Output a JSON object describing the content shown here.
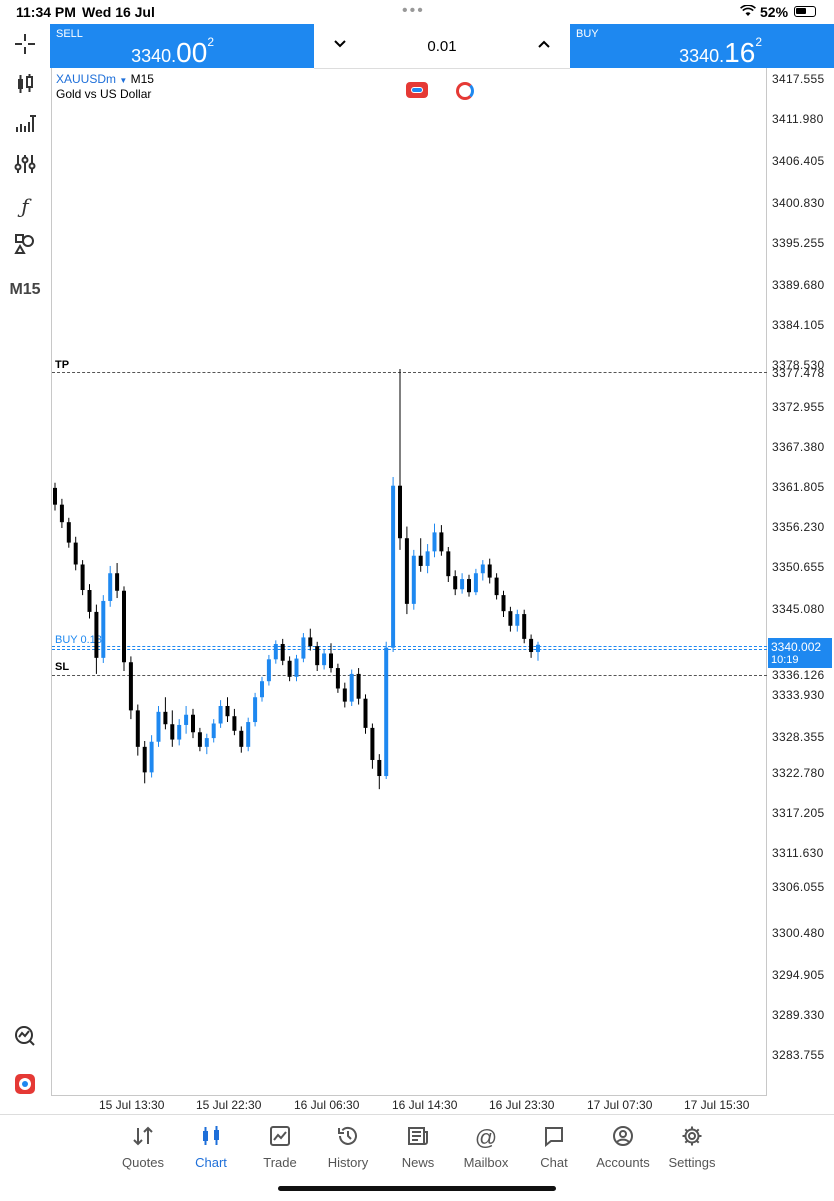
{
  "status": {
    "time": "11:34 PM",
    "date": "Wed 16 Jul",
    "battery": "52%"
  },
  "trade": {
    "sell_label": "SELL",
    "sell_main": "3340.",
    "sell_big": "00",
    "sell_sup": "2",
    "buy_label": "BUY",
    "buy_main": "3340.",
    "buy_big": "16",
    "buy_sup": "2",
    "lot": "0.01",
    "down_icon": "chevron-down-icon",
    "up_icon": "chevron-up-icon"
  },
  "chart": {
    "symbol": "XAUUSDm",
    "timeframe": "M15",
    "description": "Gold vs US Dollar",
    "current_price": "3340.002",
    "countdown": "10:19",
    "tp_label": "TP",
    "sl_label": "SL",
    "buy_label": "BUY 0.13",
    "y_labels": [
      "3417.555",
      "3411.980",
      "3406.405",
      "3400.830",
      "3395.255",
      "3389.680",
      "3384.105",
      "3378.530",
      "3377.478",
      "3372.955",
      "3367.380",
      "3361.805",
      "3356.230",
      "3350.655",
      "3345.080",
      "3336.126",
      "3333.930",
      "3328.355",
      "3322.780",
      "3317.205",
      "3311.630",
      "3306.055",
      "3300.480",
      "3294.905",
      "3289.330",
      "3283.755"
    ],
    "x_labels": [
      "15 Jul 13:30",
      "15 Jul 22:30",
      "16 Jul 06:30",
      "16 Jul 14:30",
      "16 Jul 23:30",
      "17 Jul 07:30",
      "17 Jul 15:30"
    ],
    "up_color": "#1e88f0",
    "down_color": "#000000"
  },
  "toolbar": {
    "timeframe": "M15"
  },
  "tabs": [
    {
      "label": "Quotes",
      "icon": "quotes-icon"
    },
    {
      "label": "Chart",
      "icon": "candlestick-chart-icon"
    },
    {
      "label": "Trade",
      "icon": "trade-icon"
    },
    {
      "label": "History",
      "icon": "history-icon"
    },
    {
      "label": "News",
      "icon": "news-icon"
    },
    {
      "label": "Mailbox",
      "icon": "mailbox-icon"
    },
    {
      "label": "Chat",
      "icon": "chat-icon"
    },
    {
      "label": "Accounts",
      "icon": "accounts-icon"
    },
    {
      "label": "Settings",
      "icon": "settings-icon"
    }
  ],
  "chart_data": {
    "type": "candlestick",
    "symbol": "XAUUSDm",
    "timeframe": "M15",
    "ylim": [
      3280,
      3420
    ],
    "levels": {
      "tp": 3377.478,
      "sl": 3336.126,
      "bid": 3340.002,
      "buy_entry": 3340.8
    },
    "ohlc": [
      [
        3361.5,
        3362.2,
        3358.4,
        3359.2
      ],
      [
        3359.2,
        3360.0,
        3356.0,
        3356.8
      ],
      [
        3356.8,
        3357.4,
        3353.3,
        3354.0
      ],
      [
        3354.0,
        3354.8,
        3350.2,
        3351.0
      ],
      [
        3351.0,
        3351.6,
        3346.8,
        3347.5
      ],
      [
        3347.5,
        3348.3,
        3343.6,
        3344.5
      ],
      [
        3344.5,
        3345.5,
        3336.0,
        3338.2
      ],
      [
        3338.2,
        3346.8,
        3337.5,
        3346.0
      ],
      [
        3346.0,
        3350.8,
        3345.2,
        3349.8
      ],
      [
        3349.8,
        3351.2,
        3346.4,
        3347.4
      ],
      [
        3347.4,
        3348.0,
        3336.4,
        3337.6
      ],
      [
        3337.6,
        3338.4,
        3329.8,
        3331.0
      ],
      [
        3331.0,
        3331.8,
        3324.8,
        3326.0
      ],
      [
        3326.0,
        3326.8,
        3321.0,
        3322.5
      ],
      [
        3322.5,
        3327.6,
        3321.8,
        3326.7
      ],
      [
        3326.7,
        3331.6,
        3326.0,
        3330.8
      ],
      [
        3330.8,
        3332.8,
        3328.4,
        3329.1
      ],
      [
        3329.1,
        3331.0,
        3326.0,
        3327.0
      ],
      [
        3327.0,
        3329.8,
        3326.2,
        3329.0
      ],
      [
        3329.0,
        3331.6,
        3327.8,
        3330.4
      ],
      [
        3330.4,
        3331.2,
        3327.2,
        3328.0
      ],
      [
        3328.0,
        3328.6,
        3325.4,
        3326.0
      ],
      [
        3326.0,
        3327.8,
        3325.0,
        3327.2
      ],
      [
        3327.2,
        3329.8,
        3326.6,
        3329.2
      ],
      [
        3329.2,
        3332.4,
        3328.6,
        3331.6
      ],
      [
        3331.6,
        3332.8,
        3329.4,
        3330.2
      ],
      [
        3330.2,
        3331.2,
        3327.6,
        3328.2
      ],
      [
        3328.2,
        3328.8,
        3325.2,
        3326.0
      ],
      [
        3326.0,
        3330.0,
        3325.4,
        3329.4
      ],
      [
        3329.4,
        3333.4,
        3328.8,
        3332.8
      ],
      [
        3332.8,
        3335.6,
        3332.2,
        3335.0
      ],
      [
        3335.0,
        3338.6,
        3334.4,
        3338.0
      ],
      [
        3338.0,
        3340.6,
        3337.4,
        3340.1
      ],
      [
        3340.1,
        3340.8,
        3337.2,
        3337.8
      ],
      [
        3337.8,
        3338.4,
        3335.0,
        3335.6
      ],
      [
        3335.6,
        3338.6,
        3335.0,
        3338.1
      ],
      [
        3338.1,
        3341.6,
        3337.6,
        3341.0
      ],
      [
        3341.0,
        3342.2,
        3339.2,
        3339.8
      ],
      [
        3339.8,
        3340.4,
        3336.4,
        3337.2
      ],
      [
        3337.2,
        3339.4,
        3336.6,
        3338.8
      ],
      [
        3338.8,
        3340.2,
        3336.2,
        3336.8
      ],
      [
        3336.8,
        3337.4,
        3333.4,
        3334.0
      ],
      [
        3334.0,
        3334.8,
        3331.4,
        3332.2
      ],
      [
        3332.2,
        3336.6,
        3331.6,
        3336.0
      ],
      [
        3336.0,
        3336.8,
        3331.8,
        3332.6
      ],
      [
        3332.6,
        3333.2,
        3327.8,
        3328.6
      ],
      [
        3328.6,
        3329.2,
        3323.0,
        3324.2
      ],
      [
        3324.2,
        3325.0,
        3320.2,
        3322.0
      ],
      [
        3322.0,
        3340.4,
        3321.6,
        3339.6
      ],
      [
        3339.6,
        3363.0,
        3339.0,
        3361.8
      ],
      [
        3361.8,
        3377.8,
        3353.0,
        3354.6
      ],
      [
        3354.6,
        3356.2,
        3344.2,
        3345.6
      ],
      [
        3345.6,
        3353.0,
        3344.8,
        3352.2
      ],
      [
        3352.2,
        3354.6,
        3350.0,
        3350.8
      ],
      [
        3350.8,
        3353.8,
        3349.8,
        3352.8
      ],
      [
        3352.8,
        3356.6,
        3352.0,
        3355.4
      ],
      [
        3355.4,
        3356.4,
        3352.2,
        3352.8
      ],
      [
        3352.8,
        3353.4,
        3348.6,
        3349.4
      ],
      [
        3349.4,
        3350.2,
        3346.8,
        3347.6
      ],
      [
        3347.6,
        3349.8,
        3347.0,
        3349.0
      ],
      [
        3349.0,
        3349.6,
        3346.6,
        3347.2
      ],
      [
        3347.2,
        3350.4,
        3346.8,
        3349.8
      ],
      [
        3349.8,
        3351.6,
        3348.8,
        3351.0
      ],
      [
        3351.0,
        3351.8,
        3348.4,
        3349.2
      ],
      [
        3349.2,
        3349.8,
        3346.2,
        3346.8
      ],
      [
        3346.8,
        3347.4,
        3343.8,
        3344.6
      ],
      [
        3344.6,
        3345.2,
        3341.8,
        3342.6
      ],
      [
        3342.6,
        3344.8,
        3341.8,
        3344.2
      ],
      [
        3344.2,
        3344.8,
        3340.2,
        3340.8
      ],
      [
        3340.8,
        3341.4,
        3338.2,
        3339.0
      ],
      [
        3339.0,
        3340.4,
        3337.8,
        3340.0
      ]
    ]
  }
}
